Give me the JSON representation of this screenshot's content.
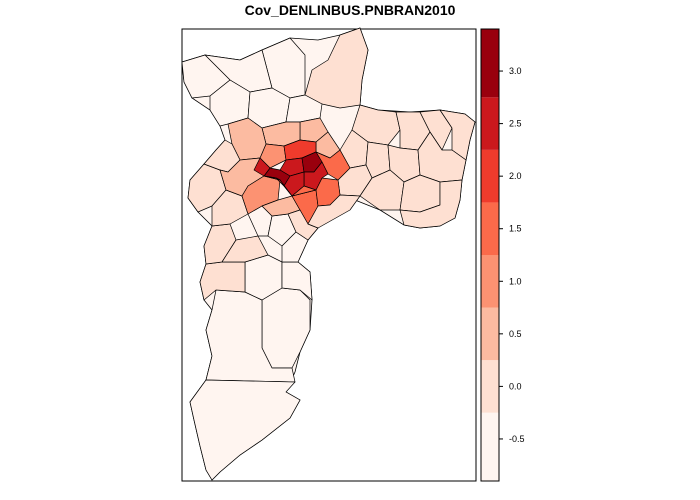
{
  "title": "Cov_DENLINBUS.PNBRAN2010",
  "legend": {
    "ticks": [
      "3.0",
      "2.5",
      "2.0",
      "1.5",
      "1.0",
      "0.5",
      "0.0",
      "-0.5"
    ],
    "tick_values": [
      3.0,
      2.5,
      2.0,
      1.5,
      1.0,
      0.5,
      0.0,
      -0.5
    ],
    "breaks": [
      -0.9,
      -0.25,
      0.25,
      0.75,
      1.25,
      1.75,
      2.25,
      2.75,
      3.4
    ],
    "colors": [
      "#fff5f0",
      "#fee0d2",
      "#fcbba1",
      "#fc9272",
      "#fb6a4a",
      "#ef3b2c",
      "#cb181d",
      "#99000d"
    ]
  }
}
